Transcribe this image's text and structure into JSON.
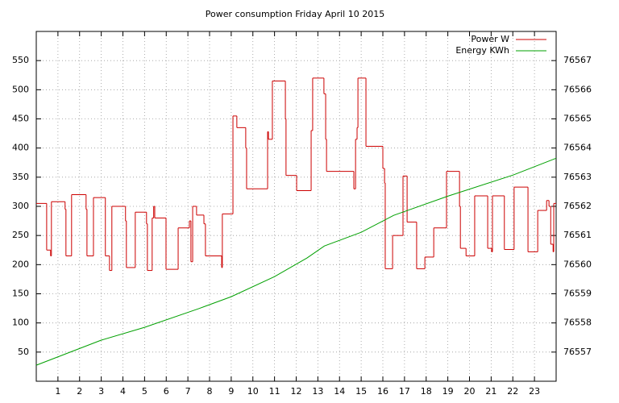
{
  "chart_data": {
    "type": "line",
    "title": "Power consumption Friday April 10 2015",
    "xlim": [
      0,
      24
    ],
    "xticks": [
      1,
      2,
      3,
      4,
      5,
      6,
      7,
      8,
      9,
      10,
      11,
      12,
      13,
      14,
      15,
      16,
      17,
      18,
      19,
      20,
      21,
      22,
      23
    ],
    "ylim": [
      0,
      600
    ],
    "yticks": [
      50,
      100,
      150,
      200,
      250,
      300,
      350,
      400,
      450,
      500,
      550
    ],
    "y2lim": [
      76556,
      76568
    ],
    "y2ticks": [
      76557,
      76558,
      76559,
      76560,
      76561,
      76562,
      76563,
      76564,
      76565,
      76566,
      76567
    ],
    "grid": true,
    "legend": "top-right",
    "series": [
      {
        "name": "Power W",
        "color": "#cc0000",
        "step": "post",
        "x": [
          0,
          0.48,
          0.66,
          0.7,
          1.33,
          1.37,
          1.63,
          2.3,
          2.34,
          2.64,
          3.19,
          3.38,
          3.49,
          4.12,
          4.16,
          4.57,
          5.09,
          5.13,
          5.35,
          5.42,
          5.47,
          5.99,
          6.55,
          7.07,
          7.14,
          7.22,
          7.4,
          7.74,
          7.81,
          8.56,
          8.59,
          9.08,
          9.26,
          9.67,
          9.71,
          10.68,
          10.72,
          10.9,
          11.5,
          11.53,
          12.02,
          12.69,
          12.76,
          13.28,
          13.36,
          13.4,
          14.66,
          14.74,
          14.81,
          14.85,
          15.22,
          16.0,
          16.08,
          16.11,
          16.45,
          16.93,
          17.12,
          17.56,
          17.94,
          18.35,
          18.94,
          19.54,
          19.58,
          19.84,
          20.24,
          20.84,
          21.02,
          21.06,
          21.61,
          22.06,
          22.7,
          23.15,
          23.56,
          23.67,
          23.75,
          23.86,
          23.89
        ],
        "values": [
          305,
          225,
          215,
          308,
          295,
          215,
          320,
          295,
          215,
          315,
          215,
          190,
          300,
          275,
          195,
          290,
          270,
          190,
          280,
          300,
          280,
          192,
          263,
          275,
          205,
          300,
          285,
          270,
          215,
          195,
          287,
          455,
          435,
          400,
          330,
          428,
          415,
          515,
          450,
          353,
          327,
          430,
          520,
          493,
          415,
          360,
          330,
          415,
          435,
          520,
          403,
          365,
          340,
          193,
          250,
          352,
          273,
          193,
          213,
          263,
          360,
          300,
          228,
          215,
          318,
          228,
          222,
          318,
          226,
          333,
          222,
          293,
          310,
          300,
          235,
          222,
          305
        ]
      },
      {
        "name": "Energy KWh",
        "color": "#00a000",
        "axis": "y2",
        "x": [
          0,
          3,
          5,
          7.5,
          9,
          11,
          12.5,
          13.3,
          15,
          16.5,
          19,
          22,
          24
        ],
        "values": [
          76556.55,
          76557.41,
          76557.85,
          76558.49,
          76558.9,
          76559.59,
          76560.23,
          76560.64,
          76561.11,
          76561.69,
          76562.35,
          76563.07,
          76563.65
        ]
      }
    ]
  }
}
